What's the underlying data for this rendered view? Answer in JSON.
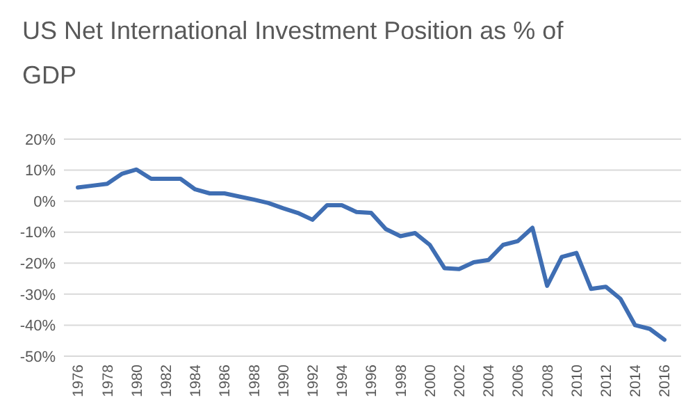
{
  "chart_data": {
    "type": "line",
    "title": "US Net International Investment Position as % of GDP",
    "categories": [
      "1976",
      null,
      "1978",
      null,
      "1980",
      null,
      "1982",
      null,
      "1984",
      null,
      "1986",
      null,
      "1988",
      null,
      "1990",
      null,
      "1992",
      null,
      "1994",
      null,
      "1996",
      null,
      "1998",
      null,
      "2000",
      null,
      "2002",
      null,
      "2004",
      null,
      "2006",
      null,
      "2008",
      null,
      "2010",
      null,
      "2012",
      null,
      "2014",
      null,
      "2016"
    ],
    "series": [
      {
        "color": "#3f6eb3",
        "values": [
          4.4,
          5,
          5.6,
          8.8,
          10.2,
          7.2,
          7.2,
          7.2,
          3.8,
          2.5,
          2.5,
          1.5,
          0.5,
          -0.6,
          -2.3,
          -3.8,
          -6,
          -1.3,
          -1.3,
          -3.5,
          -3.8,
          -9,
          -11.3,
          -10.3,
          -14.1,
          -21.6,
          -21.9,
          -19.7,
          -19,
          -14.1,
          -12.9,
          -8.6,
          -27.3,
          -18,
          -16.7,
          -28.3,
          -27.6,
          -31.5,
          -40,
          -41.2,
          -44.7
        ]
      }
    ],
    "ylim": [
      -50,
      20
    ],
    "yticks": [
      {
        "value": -50,
        "label": "-50%"
      },
      {
        "value": -40,
        "label": "-40%"
      },
      {
        "value": -30,
        "label": "-30%"
      },
      {
        "value": -20,
        "label": "-20%"
      },
      {
        "value": -10,
        "label": "-10%"
      },
      {
        "value": 0,
        "label": "0%"
      },
      {
        "value": 10,
        "label": "10%"
      },
      {
        "value": 20,
        "label": "20%"
      }
    ],
    "grid": "y",
    "marker": "none",
    "line_style": "solid"
  }
}
